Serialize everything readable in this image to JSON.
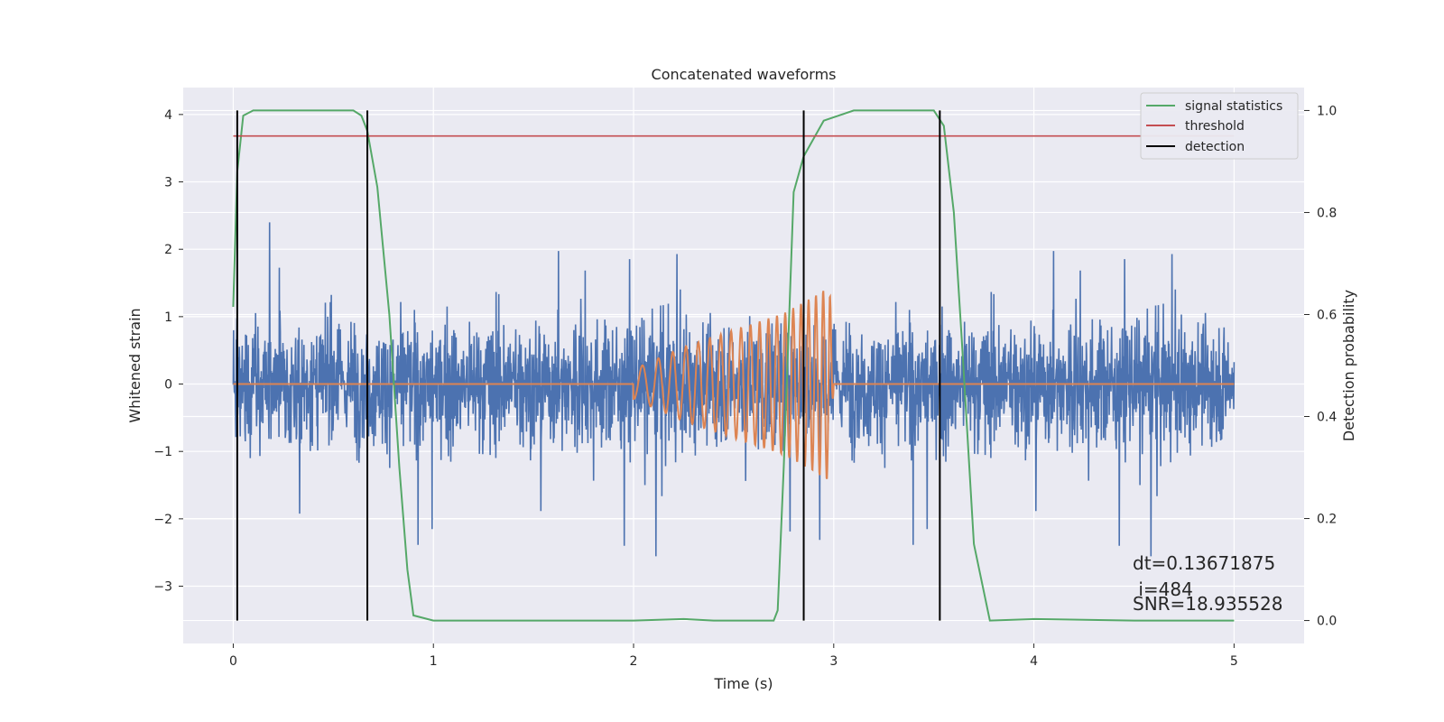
{
  "chart_data": {
    "type": "line",
    "title": "Concatenated waveforms",
    "xlabel": "Time (s)",
    "ylabel": "Whitened strain",
    "ylabel_right": "Detection probability",
    "xlim": [
      -0.25,
      5.35
    ],
    "ylim": [
      -3.85,
      4.4
    ],
    "ylim_right": [
      -0.045,
      1.045
    ],
    "xticks": [
      0,
      1,
      2,
      3,
      4,
      5
    ],
    "yticks": [
      -3,
      -2,
      -1,
      0,
      1,
      2,
      3,
      4
    ],
    "yticks_right": [
      0.0,
      0.2,
      0.4,
      0.6,
      0.8,
      1.0
    ],
    "xtick_labels": [
      "0",
      "1",
      "2",
      "3",
      "4",
      "5"
    ],
    "ytick_labels": [
      "−3",
      "−2",
      "−1",
      "0",
      "1",
      "2",
      "3",
      "4"
    ],
    "ytick_right_labels": [
      "0.0",
      "0.2",
      "0.4",
      "0.6",
      "0.8",
      "1.0"
    ],
    "grid": true,
    "legend_position": "top-right",
    "colors": {
      "strain": "#4c72b0",
      "injection": "#dd8452",
      "statistics": "#55a868",
      "threshold": "#c44e52",
      "detection": "#000000",
      "background": "#eaeaf2",
      "grid": "#ffffff"
    },
    "series": [
      {
        "kind": "whitened_strain",
        "axis": "left",
        "x_range": [
          0,
          5
        ],
        "noise_peak_amplitude": 4.05
      },
      {
        "kind": "injected_chirp",
        "axis": "left",
        "x": [
          0,
          1.98,
          2.0,
          2.25,
          2.5,
          2.75,
          2.9,
          2.98,
          3.0,
          5.0
        ],
        "envelope": [
          0,
          0,
          0.22,
          0.55,
          0.8,
          1.05,
          1.3,
          1.45,
          0,
          0
        ]
      },
      {
        "name": "signal statistics",
        "axis": "right",
        "x": [
          0,
          0.02,
          0.05,
          0.1,
          0.6,
          0.64,
          0.67,
          0.72,
          0.78,
          0.83,
          0.87,
          0.9,
          1.0,
          1.5,
          2.0,
          2.25,
          2.4,
          2.6,
          2.7,
          2.72,
          2.75,
          2.8,
          2.85,
          2.95,
          3.1,
          3.5,
          3.55,
          3.6,
          3.64,
          3.7,
          3.78,
          4.0,
          4.5,
          5.0
        ],
        "y": [
          0.615,
          0.88,
          0.99,
          1.0,
          1.0,
          0.99,
          0.96,
          0.85,
          0.6,
          0.3,
          0.1,
          0.01,
          0.0,
          0.0,
          0.0,
          0.003,
          0.0,
          0.0,
          0.0,
          0.02,
          0.3,
          0.84,
          0.91,
          0.98,
          1.0,
          1.0,
          0.97,
          0.8,
          0.55,
          0.15,
          0.0,
          0.003,
          0.0,
          0.0
        ]
      },
      {
        "name": "threshold",
        "axis": "right",
        "x": [
          0,
          5
        ],
        "y": [
          0.95,
          0.95
        ]
      },
      {
        "name": "detection",
        "axis": "right",
        "vlines_x": [
          0.02,
          0.67,
          2.85,
          3.53
        ],
        "y_range": [
          0.0,
          1.0
        ]
      }
    ],
    "annotations": [
      "dt=0.13671875",
      " i=484",
      "SNR=18.935528"
    ]
  }
}
